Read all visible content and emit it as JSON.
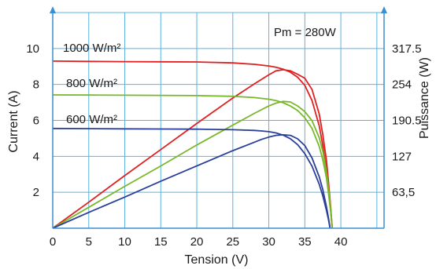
{
  "chart_data": {
    "type": "line",
    "xlabel": "Tension (V)",
    "ylabel": "Current (A)",
    "y2label": "Puissance (W)",
    "xlim": [
      0,
      46
    ],
    "ylim": [
      0,
      12
    ],
    "y2lim": [
      0,
      381
    ],
    "x_ticks": [
      "0",
      "5",
      "10",
      "15",
      "20",
      "25",
      "30",
      "35",
      "40"
    ],
    "y_ticks": [
      "2",
      "4",
      "6",
      "8",
      "10"
    ],
    "y2_ticks": [
      {
        "value": 63.5,
        "label": "63,5"
      },
      {
        "value": 127,
        "label": "127"
      },
      {
        "value": 190.5,
        "label": "190.5"
      },
      {
        "value": 254,
        "label": "254"
      },
      {
        "value": 317.5,
        "label": "317.5"
      }
    ],
    "grid": true,
    "annotation": "Pm = 280W",
    "series": [
      {
        "name": "1000 W/m²",
        "color": "#e02020",
        "current": {
          "x": [
            0,
            5,
            10,
            15,
            20,
            25,
            28,
            30,
            31,
            32,
            33,
            34,
            35,
            36,
            37,
            37.5,
            38,
            38.3,
            38.6,
            38.8
          ],
          "y": [
            9.3,
            9.28,
            9.27,
            9.26,
            9.25,
            9.2,
            9.12,
            9.03,
            8.96,
            8.85,
            8.68,
            8.4,
            7.95,
            7.1,
            5.7,
            4.6,
            3.2,
            2.1,
            0.9,
            0
          ]
        },
        "power": {
          "x": [
            0,
            5,
            10,
            15,
            20,
            25,
            28,
            30,
            31,
            32,
            33,
            34,
            35,
            36,
            37,
            37.5,
            38,
            38.3,
            38.6,
            38.8
          ],
          "y": [
            0,
            46,
            93,
            139,
            185,
            230,
            255,
            271,
            278,
            280,
            278,
            272,
            265,
            245,
            202,
            165,
            120,
            80,
            35,
            0
          ]
        }
      },
      {
        "name": "800 W/m²",
        "color": "#78b82a",
        "current": {
          "x": [
            0,
            5,
            10,
            15,
            20,
            25,
            28,
            30,
            31,
            32,
            33,
            34,
            35,
            36,
            37,
            37.5,
            38,
            38.3,
            38.6,
            38.8
          ],
          "y": [
            7.42,
            7.41,
            7.4,
            7.39,
            7.38,
            7.34,
            7.27,
            7.18,
            7.1,
            6.98,
            6.8,
            6.55,
            6.15,
            5.55,
            4.55,
            3.8,
            2.8,
            1.9,
            0.9,
            0
          ]
        },
        "power": {
          "x": [
            0,
            5,
            10,
            15,
            20,
            25,
            28,
            30,
            31,
            32,
            33,
            34,
            35,
            36,
            37,
            37.5,
            38,
            38.3,
            38.6,
            38.8
          ],
          "y": [
            0,
            37,
            74,
            110,
            147,
            182,
            203,
            216,
            221,
            224,
            223,
            216,
            206,
            190,
            160,
            136,
            100,
            70,
            33,
            0
          ]
        }
      },
      {
        "name": "600 W/m²",
        "color": "#2a3f9a",
        "current": {
          "x": [
            0,
            5,
            10,
            15,
            20,
            25,
            28,
            29,
            30,
            31,
            32,
            33,
            34,
            35,
            36,
            37,
            37.5,
            38,
            38.3,
            38.5
          ],
          "y": [
            5.55,
            5.54,
            5.53,
            5.52,
            5.51,
            5.48,
            5.44,
            5.41,
            5.37,
            5.3,
            5.18,
            4.98,
            4.65,
            4.15,
            3.45,
            2.45,
            1.8,
            1.0,
            0.45,
            0
          ]
        },
        "power": {
          "x": [
            0,
            5,
            10,
            15,
            20,
            25,
            28,
            29,
            30,
            31,
            32,
            33,
            34,
            35,
            36,
            37,
            37.5,
            38,
            38.3,
            38.5
          ],
          "y": [
            0,
            28,
            55,
            83,
            110,
            137,
            152,
            157,
            161,
            164,
            165,
            164,
            158,
            146,
            124,
            91,
            68,
            38,
            17,
            0
          ]
        }
      }
    ]
  }
}
